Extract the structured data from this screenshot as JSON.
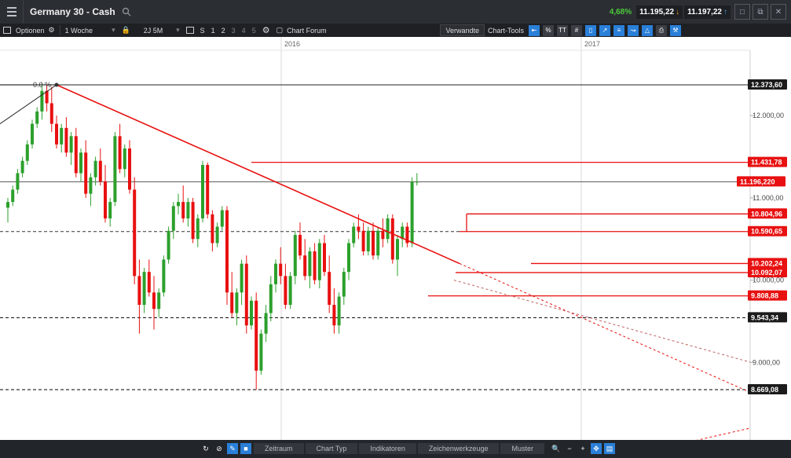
{
  "header": {
    "title": "Germany 30 - Cash",
    "change": "4,68%",
    "bid": "11.195,22",
    "ask": "11.197,22"
  },
  "toolbar": {
    "options_label": "Optionen",
    "interval": "1 Woche",
    "range": "2J 5M",
    "s_label": "S",
    "layout_1": "1",
    "layout_2": "2",
    "layout_3": "3",
    "layout_4": "4",
    "layout_5": "5",
    "forum_label": "Chart Forum",
    "related_label": "Verwandte",
    "tools_label": "Chart-Tools",
    "pct_label": "%",
    "text_label": "TT"
  },
  "bottombar": {
    "tabs": [
      "Zeitraum",
      "Chart Typ",
      "Indikatoren",
      "Zeichenwerkzeuge",
      "Muster"
    ]
  },
  "chart_data": {
    "type": "candlestick",
    "x_labels": [
      "2016",
      "2017"
    ],
    "ylim": [
      8400,
      12650
    ],
    "y_ticks": [
      "12.000,00",
      "11.000,00",
      "10.000,00",
      "9.000,00"
    ],
    "price_level_labels": [
      {
        "text": "12.373,60",
        "value": 12373.6,
        "style": "black"
      },
      {
        "text": "11.431,78",
        "value": 11431.78,
        "style": "red"
      },
      {
        "text": "11.196,220",
        "value": 11196.22,
        "style": "current"
      },
      {
        "text": "10.804,96",
        "value": 10804.96,
        "style": "red"
      },
      {
        "text": "10.590,65",
        "value": 10590.65,
        "style": "red"
      },
      {
        "text": "10.202,24",
        "value": 10202.24,
        "style": "red"
      },
      {
        "text": "10.092,07",
        "value": 10092.07,
        "style": "red"
      },
      {
        "text": "9.808,88",
        "value": 9808.88,
        "style": "red"
      },
      {
        "text": "9.543,34",
        "value": 9543.34,
        "style": "black"
      },
      {
        "text": "8.669,08",
        "value": 8669.08,
        "style": "black"
      }
    ],
    "fib_label": "0.0 %",
    "colors": {
      "up": "#2ca02c",
      "down": "#e81010",
      "line": "#e81010"
    },
    "grid": true
  }
}
